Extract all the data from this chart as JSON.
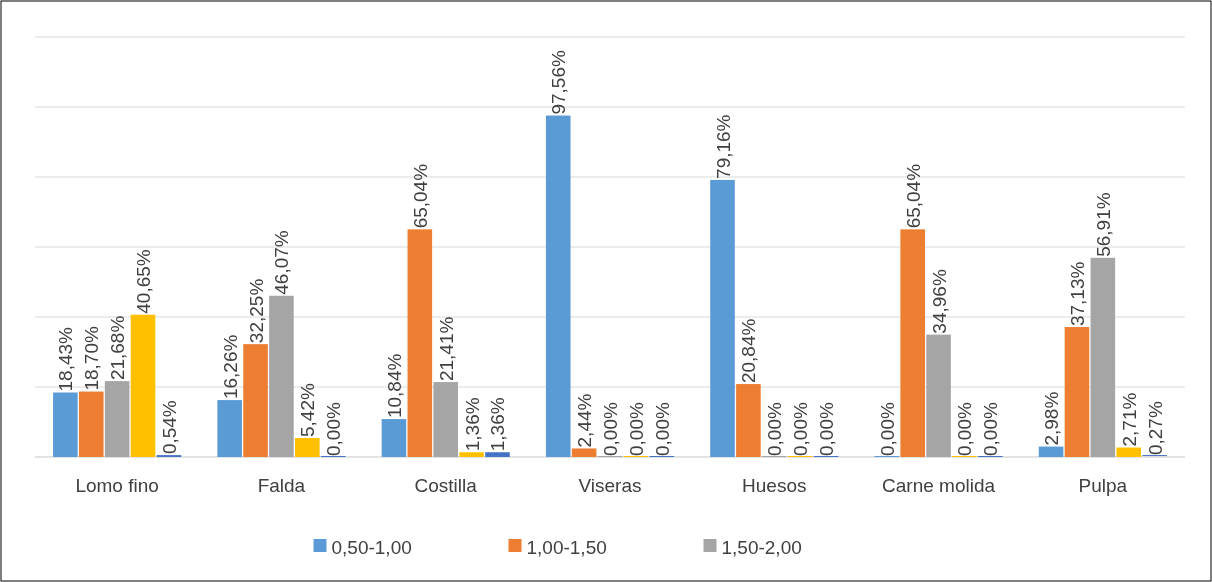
{
  "chart_data": {
    "type": "bar",
    "categories": [
      "Lomo fino",
      "Falda",
      "Costilla",
      "Viseras",
      "Huesos",
      "Carne molida",
      "Pulpa"
    ],
    "ylim": [
      0,
      120
    ],
    "yticks": [
      {
        "value": 0,
        "label": null
      },
      {
        "value": 20,
        "label": null
      },
      {
        "value": 40,
        "label": null
      },
      {
        "value": 60,
        "label": null
      },
      {
        "value": 80,
        "label": null
      },
      {
        "value": 100,
        "label": null
      },
      {
        "value": 120,
        "label": null
      }
    ],
    "grid": "y",
    "tick_labels": "x",
    "legend": "bottom",
    "series": [
      {
        "name": "0,50-1,00",
        "color": "#5b9bd5",
        "values": [
          18.43,
          16.26,
          10.84,
          97.56,
          79.16,
          0.0,
          2.98
        ],
        "value_labels": [
          "18,43%",
          "16,26%",
          "10,84%",
          "97,56%",
          "79,16%",
          "0,00%",
          "2,98%"
        ]
      },
      {
        "name": "1,00-1,50",
        "color": "#ed7d31",
        "values": [
          18.7,
          32.25,
          65.04,
          2.44,
          20.84,
          65.04,
          37.13
        ],
        "value_labels": [
          "18,70%",
          "32,25%",
          "65,04%",
          "2,44%",
          "20,84%",
          "65,04%",
          "37,13%"
        ]
      },
      {
        "name": "1,50-2,00",
        "color": "#a5a5a5",
        "values": [
          21.68,
          46.07,
          21.41,
          0.0,
          0.0,
          34.96,
          56.91
        ],
        "value_labels": [
          "21,68%",
          "46,07%",
          "21,41%",
          "0,00%",
          "0,00%",
          "34,96%",
          "56,91%"
        ]
      },
      {
        "color": "#ffc000",
        "values": [
          40.65,
          5.42,
          1.36,
          0.0,
          0.0,
          0.0,
          2.71
        ],
        "value_labels": [
          "40,65%",
          "5,42%",
          "1,36%",
          "0,00%",
          "0,00%",
          "0,00%",
          "2,71%"
        ]
      },
      {
        "color": "#4472c4",
        "values": [
          0.54,
          0.0,
          1.36,
          0.0,
          0.0,
          0.0,
          0.27
        ],
        "value_labels": [
          "0,54%",
          "0,00%",
          "1,36%",
          "0,00%",
          "0,00%",
          "0,00%",
          "0,27%"
        ]
      }
    ]
  }
}
